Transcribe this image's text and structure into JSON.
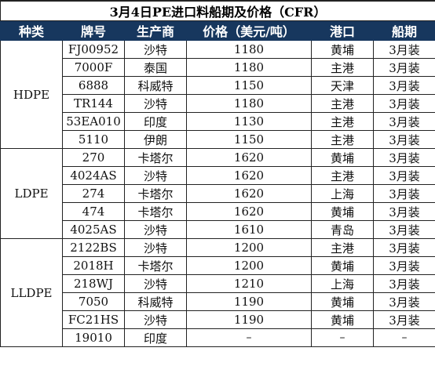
{
  "title": "3月4日PE进口料船期及价格（CFR）",
  "columns": [
    "种类",
    "牌号",
    "生产商",
    "价格（美元/吨）",
    "港口",
    "船期"
  ],
  "groups": [
    {
      "category": "HDPE",
      "rows": [
        {
          "grade": "FJ00952",
          "producer": "沙特",
          "price": "1180",
          "port": "黄埔",
          "shipment": "3月装"
        },
        {
          "grade": "7000F",
          "producer": "泰国",
          "price": "1180",
          "port": "主港",
          "shipment": "3月装"
        },
        {
          "grade": "6888",
          "producer": "科威特",
          "price": "1150",
          "port": "天津",
          "shipment": "3月装"
        },
        {
          "grade": "TR144",
          "producer": "沙特",
          "price": "1180",
          "port": "主港",
          "shipment": "3月装"
        },
        {
          "grade": "53EA010",
          "producer": "印度",
          "price": "1130",
          "port": "主港",
          "shipment": "3月装"
        },
        {
          "grade": "5110",
          "producer": "伊朗",
          "price": "1150",
          "port": "主港",
          "shipment": "3月装"
        }
      ]
    },
    {
      "category": "LDPE",
      "rows": [
        {
          "grade": "270",
          "producer": "卡塔尔",
          "price": "1620",
          "port": "黄埔",
          "shipment": "3月装"
        },
        {
          "grade": "4024AS",
          "producer": "沙特",
          "price": "1620",
          "port": "主港",
          "shipment": "3月装"
        },
        {
          "grade": "274",
          "producer": "卡塔尔",
          "price": "1620",
          "port": "上海",
          "shipment": "3月装"
        },
        {
          "grade": "474",
          "producer": "卡塔尔",
          "price": "1620",
          "port": "黄埔",
          "shipment": "3月装"
        },
        {
          "grade": "4025AS",
          "producer": "沙特",
          "price": "1610",
          "port": "青岛",
          "shipment": "3月装"
        }
      ]
    },
    {
      "category": "LLDPE",
      "rows": [
        {
          "grade": "2122BS",
          "producer": "沙特",
          "price": "1200",
          "port": "主港",
          "shipment": "3月装"
        },
        {
          "grade": "2018H",
          "producer": "卡塔尔",
          "price": "1200",
          "port": "黄埔",
          "shipment": "3月装"
        },
        {
          "grade": "218WJ",
          "producer": "沙特",
          "price": "1210",
          "port": "上海",
          "shipment": "3月装"
        },
        {
          "grade": "7050",
          "producer": "科威特",
          "price": "1190",
          "port": "黄埔",
          "shipment": "3月装"
        },
        {
          "grade": "FC21HS",
          "producer": "沙特",
          "price": "1190",
          "port": "黄埔",
          "shipment": "3月装"
        },
        {
          "grade": "19010",
          "producer": "印度",
          "price": "–",
          "port": "–",
          "shipment": "–"
        }
      ]
    }
  ]
}
